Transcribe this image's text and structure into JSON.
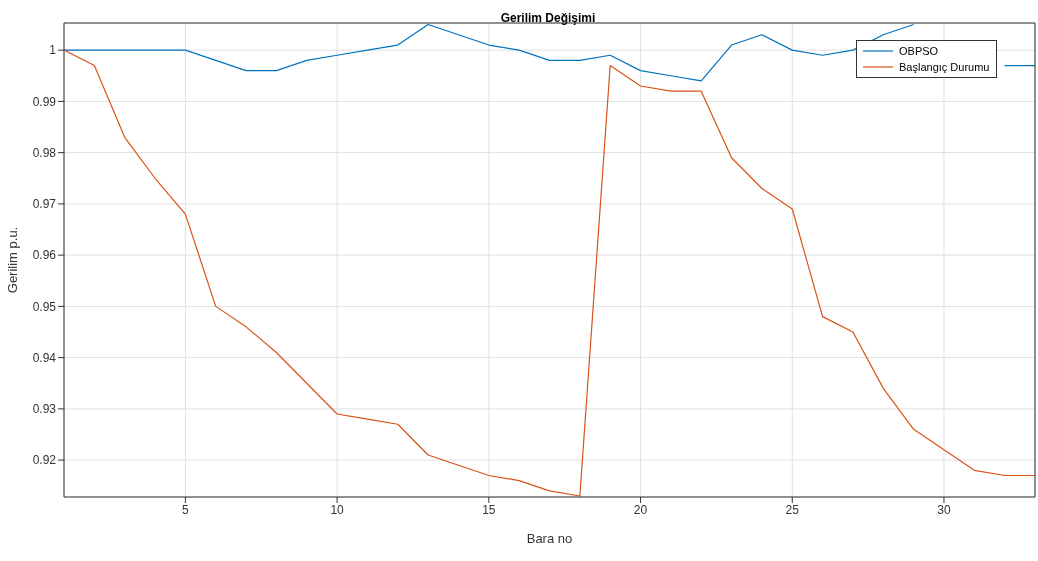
{
  "chart_data": {
    "type": "line",
    "title": "Gerilim Değişimi",
    "xlabel": "Bara no",
    "ylabel": "Gerilim p.u.",
    "x": [
      1,
      2,
      3,
      4,
      5,
      6,
      7,
      8,
      9,
      10,
      11,
      12,
      13,
      14,
      15,
      16,
      17,
      18,
      19,
      20,
      21,
      22,
      23,
      24,
      25,
      26,
      27,
      28,
      29,
      30,
      31,
      32,
      33
    ],
    "series": [
      {
        "name": "OBPSO",
        "color": "#0072bd",
        "values": [
          1.0,
          1.0,
          1.0,
          1.0,
          1.0,
          0.998,
          0.996,
          0.996,
          0.998,
          0.999,
          1.0,
          1.001,
          1.005,
          1.003,
          1.001,
          1.0,
          0.998,
          0.998,
          0.999,
          0.996,
          0.995,
          0.994,
          1.001,
          1.003,
          1.0,
          0.999,
          1.0,
          1.003,
          1.005,
          null,
          null,
          0.997,
          0.997
        ]
      },
      {
        "name": "Başlangıç Durumu",
        "color": "#d95319",
        "values": [
          1.0,
          0.997,
          0.983,
          0.975,
          0.968,
          0.95,
          0.946,
          0.941,
          0.935,
          0.929,
          0.928,
          0.927,
          0.921,
          0.919,
          0.917,
          0.916,
          0.914,
          0.913,
          0.997,
          0.993,
          0.992,
          0.992,
          0.979,
          0.973,
          0.969,
          0.948,
          0.945,
          0.934,
          0.926,
          0.922,
          0.918,
          0.917,
          0.917
        ]
      }
    ],
    "xlim": [
      1,
      33
    ],
    "xticks": [
      5,
      10,
      15,
      20,
      25,
      30
    ],
    "ylim": [
      0.9128,
      1.0053
    ],
    "yticks": [
      0.92,
      0.93,
      0.94,
      0.95,
      0.96,
      0.97,
      0.98,
      0.99,
      1
    ],
    "grid": true,
    "legend": "top right",
    "marker": "none",
    "line_style": "solid"
  }
}
